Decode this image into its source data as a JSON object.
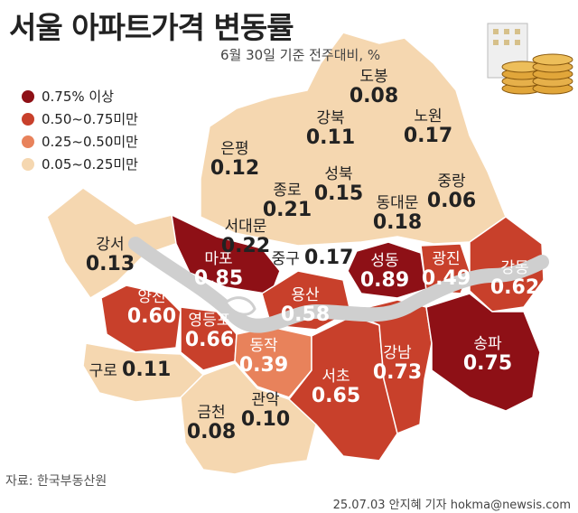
{
  "title": "서울 아파트가격 변동률",
  "subtitle": "6월 30일 기준 전주대비, %",
  "legend": [
    {
      "label": "0.75% 이상",
      "color": "#8e1016"
    },
    {
      "label": "0.50~0.75미만",
      "color": "#c8402b"
    },
    {
      "label": "0.25~0.50미만",
      "color": "#e8825b"
    },
    {
      "label": "0.05~0.25미만",
      "color": "#f5d7b0"
    }
  ],
  "districts": [
    {
      "name": "도봉",
      "value": "0.08"
    },
    {
      "name": "노원",
      "value": "0.17"
    },
    {
      "name": "강북",
      "value": "0.11"
    },
    {
      "name": "은평",
      "value": "0.12"
    },
    {
      "name": "성북",
      "value": "0.15"
    },
    {
      "name": "종로",
      "value": "0.21"
    },
    {
      "name": "중랑",
      "value": "0.06"
    },
    {
      "name": "동대문",
      "value": "0.18"
    },
    {
      "name": "서대문",
      "value": "0.22"
    },
    {
      "name": "강서",
      "value": "0.13"
    },
    {
      "name": "마포",
      "value": "0.85"
    },
    {
      "name": "중구",
      "value": "0.17"
    },
    {
      "name": "성동",
      "value": "0.89"
    },
    {
      "name": "광진",
      "value": "0.49"
    },
    {
      "name": "강동",
      "value": "0.62"
    },
    {
      "name": "양천",
      "value": "0.60"
    },
    {
      "name": "용산",
      "value": "0.58"
    },
    {
      "name": "영등포",
      "value": "0.66"
    },
    {
      "name": "동작",
      "value": "0.39"
    },
    {
      "name": "구로",
      "value": "0.11"
    },
    {
      "name": "송파",
      "value": "0.75"
    },
    {
      "name": "강남",
      "value": "0.73"
    },
    {
      "name": "서초",
      "value": "0.65"
    },
    {
      "name": "금천",
      "value": "0.08"
    },
    {
      "name": "관악",
      "value": "0.10"
    }
  ],
  "source": "자료: 한국부동산원",
  "credit": "25.07.03 안지혜 기자 hokma@newsis.com",
  "icon": "apartment-coins-icon"
}
